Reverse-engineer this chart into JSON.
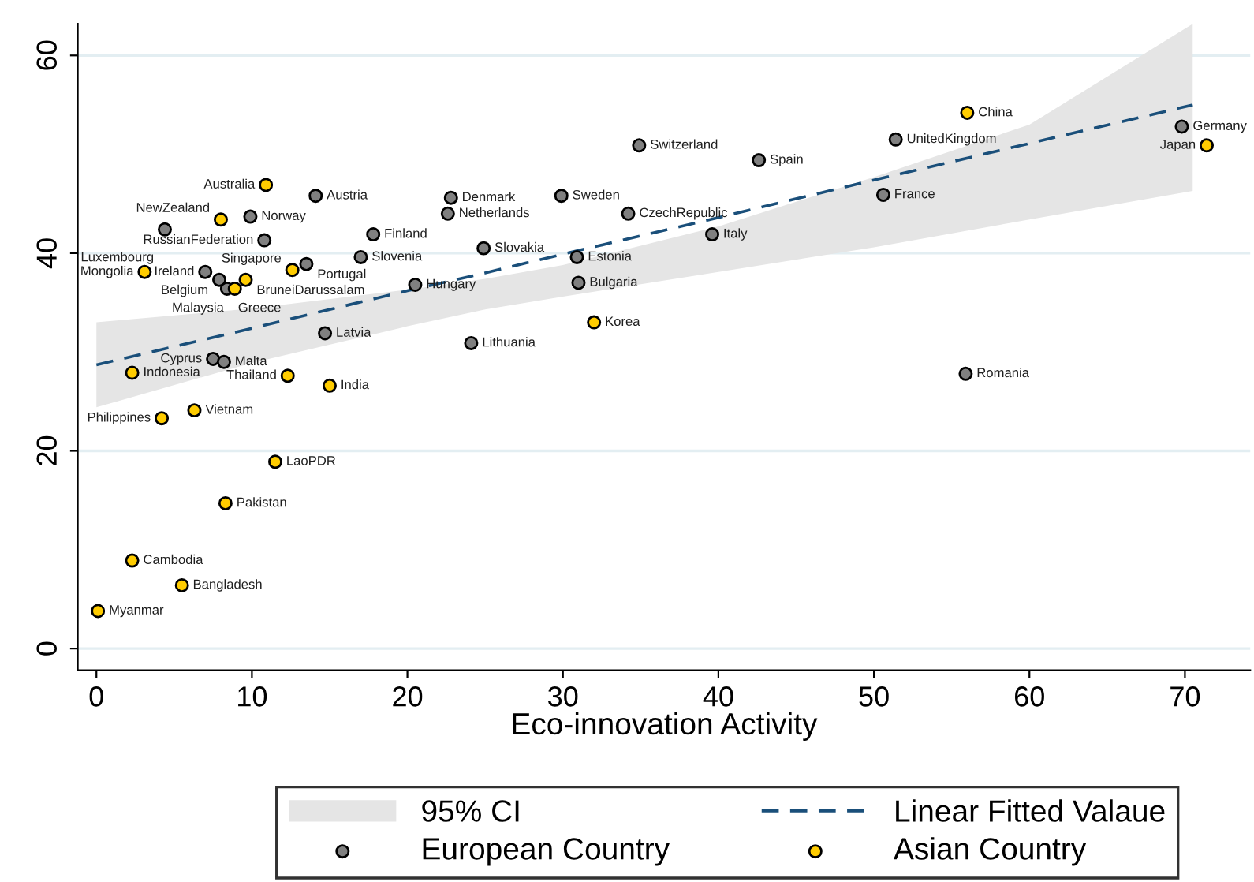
{
  "chart_data": {
    "type": "scatter",
    "xlabel": "Eco-innovation Activity",
    "xlim": [
      -1.2,
      74.2
    ],
    "ylim": [
      -2.2,
      63.2
    ],
    "xticks": [
      0,
      10,
      20,
      30,
      40,
      50,
      60,
      70
    ],
    "yticks": [
      0,
      20,
      40,
      60
    ],
    "grid": "y",
    "legend": "bottom",
    "annotations": [
      "95% CI"
    ],
    "series": [
      {
        "type": "line",
        "name": "Linear Fitted Valaue",
        "color": "#1a4f7a",
        "line_style": "dashed",
        "x": [
          0,
          10,
          20,
          25,
          30,
          40,
          50,
          60,
          70.5
        ],
        "values": [
          28.7,
          32.4,
          36.2,
          38.0,
          39.9,
          43.6,
          47.4,
          51.1,
          55.0
        ],
        "lower": [
          24.4,
          28.9,
          32.6,
          34.3,
          35.6,
          38.1,
          40.6,
          43.4,
          46.3
        ],
        "upper": [
          33.0,
          34.4,
          36.3,
          37.4,
          38.8,
          42.7,
          47.7,
          53.0,
          63.2
        ]
      },
      {
        "name": "European Country",
        "color": "#808080",
        "marker": "circle",
        "x": [
          14.1,
          22.8,
          22.6,
          9.9,
          4.4,
          10.8,
          17.8,
          17.0,
          13.5,
          7.0,
          7.9,
          8.4,
          20.5,
          24.9,
          30.9,
          31.0,
          14.7,
          24.1,
          29.9,
          34.2,
          39.6,
          34.9,
          42.6,
          51.4,
          50.6,
          69.8,
          55.9,
          7.5,
          8.2
        ],
        "values": [
          45.8,
          45.6,
          44.0,
          43.7,
          42.4,
          41.3,
          41.9,
          39.6,
          38.9,
          38.1,
          37.3,
          36.4,
          36.8,
          40.5,
          39.6,
          37.0,
          31.9,
          30.9,
          45.8,
          44.0,
          41.9,
          50.9,
          49.4,
          51.5,
          45.9,
          52.8,
          27.8,
          29.3,
          29.0
        ],
        "value_labels": [
          "Austria",
          "Denmark",
          "Netherlands",
          "Norway",
          "Luxembourg",
          "RussianFederation",
          "Finland",
          "Slovenia",
          "Portugal",
          "Ireland",
          "Belgium",
          "Greece",
          "Hungary",
          "Slovakia",
          "Estonia",
          "Bulgaria",
          "Latvia",
          "Lithuania",
          "Sweden",
          "CzechRepublic",
          "Italy",
          "Switzerland",
          "Spain",
          "UnitedKingdom",
          "France",
          "Germany",
          "Romania",
          "Cyprus",
          "Malta"
        ]
      },
      {
        "name": "Asian Country",
        "color": "#ffcc00",
        "marker": "circle",
        "x": [
          10.9,
          8.0,
          12.6,
          3.1,
          8.9,
          9.6,
          32.0,
          56.0,
          71.4,
          2.3,
          12.3,
          15.0,
          6.3,
          4.2,
          11.5,
          8.3,
          2.3,
          5.5,
          0.1
        ],
        "values": [
          46.9,
          43.4,
          38.3,
          38.1,
          36.4,
          37.3,
          33.0,
          54.2,
          50.9,
          27.9,
          27.6,
          26.6,
          24.1,
          23.3,
          18.9,
          14.7,
          8.9,
          6.4,
          3.8
        ],
        "value_labels": [
          "Australia",
          "NewZealand",
          "Singapore",
          "Mongolia",
          "Malaysia",
          "BruneiDarussalam",
          "Korea",
          "China",
          "Japan",
          "Indonesia",
          "Thailand",
          "India",
          "Vietnam",
          "Philippines",
          "LaoPDR",
          "Pakistan",
          "Cambodia",
          "Bangladesh",
          "Myanmar"
        ]
      }
    ]
  }
}
